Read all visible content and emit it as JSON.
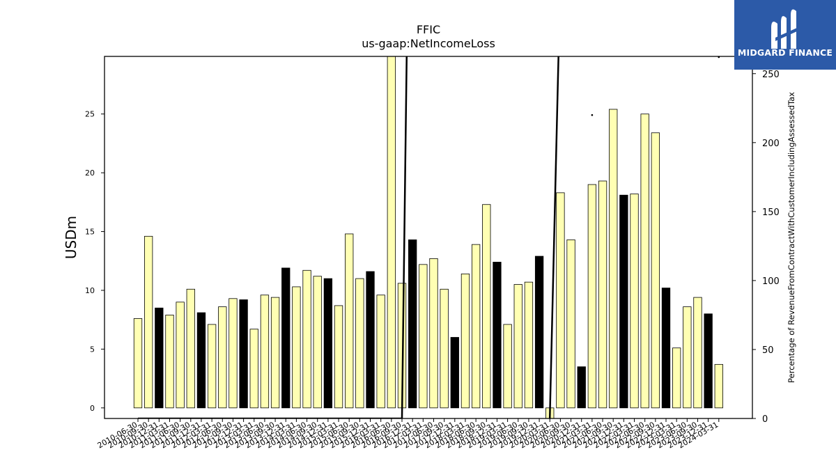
{
  "chart_data": {
    "type": "bar",
    "title": "FFIC",
    "subtitle": "us-gaap:NetIncomeLoss",
    "ylabel": "USDm",
    "y2label": "Percentage of RevenueFromContractWithCustomerIncludingAssessedTax",
    "ylim": [
      -0.9,
      29.9
    ],
    "y2lim": [
      0,
      262.5
    ],
    "yticks": [
      0,
      5,
      10,
      15,
      20,
      25
    ],
    "y2ticks": [
      0,
      50,
      100,
      150,
      200,
      250
    ],
    "grid": false,
    "legend": "none",
    "colors": {
      "bar_default": "#ffffb3",
      "bar_highlight": "#000000",
      "line": "#000000"
    },
    "categories": [
      "2010-06-30",
      "2010-09-30",
      "2010-12-31",
      "2011-03-31",
      "2011-06-30",
      "2011-09-30",
      "2011-12-31",
      "2012-03-31",
      "2012-06-30",
      "2012-09-30",
      "2012-12-31",
      "2013-03-31",
      "2013-06-30",
      "2013-09-30",
      "2013-12-31",
      "2014-03-31",
      "2014-06-30",
      "2014-09-30",
      "2014-12-31",
      "2015-03-31",
      "2015-06-30",
      "2015-09-30",
      "2015-12-31",
      "2016-03-31",
      "2016-06-30",
      "2016-09-30",
      "2016-12-31",
      "2017-03-31",
      "2017-06-30",
      "2017-09-30",
      "2017-12-31",
      "2018-03-31",
      "2018-06-30",
      "2018-09-30",
      "2018-12-31",
      "2019-03-31",
      "2019-06-30",
      "2019-09-30",
      "2019-12-31",
      "2020-03-31",
      "2020-06-30",
      "2020-09-30",
      "2020-12-31",
      "2021-03-31",
      "2021-06-30",
      "2021-09-30",
      "2021-12-31",
      "2022-03-31",
      "2022-06-30",
      "2022-09-30",
      "2022-12-31",
      "2023-03-31",
      "2023-06-30",
      "2023-09-30",
      "2023-12-31",
      "2024-03-31"
    ],
    "values": [
      7.6,
      14.6,
      8.5,
      7.9,
      9.0,
      10.1,
      8.1,
      7.1,
      8.6,
      9.3,
      9.2,
      6.7,
      9.6,
      9.4,
      11.9,
      10.3,
      11.7,
      11.2,
      11.0,
      8.7,
      14.8,
      11.0,
      11.6,
      9.6,
      30.0,
      10.6,
      14.3,
      12.2,
      12.7,
      10.1,
      6.0,
      11.4,
      13.9,
      17.3,
      12.4,
      7.1,
      10.5,
      10.7,
      12.9,
      -0.9,
      18.3,
      14.3,
      3.5,
      19.0,
      19.3,
      25.4,
      18.1,
      18.2,
      25.0,
      23.4,
      10.2,
      5.1,
      8.6,
      9.4,
      8.0,
      3.7
    ],
    "highlight": [
      false,
      false,
      true,
      false,
      false,
      false,
      true,
      false,
      false,
      false,
      true,
      false,
      false,
      false,
      true,
      false,
      false,
      false,
      true,
      false,
      false,
      false,
      true,
      false,
      false,
      false,
      true,
      false,
      false,
      false,
      true,
      false,
      false,
      false,
      true,
      false,
      false,
      false,
      true,
      false,
      false,
      false,
      true,
      false,
      false,
      false,
      true,
      false,
      false,
      false,
      true,
      false,
      false,
      false,
      true,
      false
    ],
    "line_series": {
      "axis": "right",
      "values": [
        0,
        0,
        0,
        0,
        0,
        0,
        0,
        0,
        0,
        0,
        0,
        0,
        0,
        0,
        0,
        0,
        0,
        0,
        0,
        0,
        0,
        0,
        0,
        0,
        0,
        0,
        590,
        null,
        null,
        null,
        null,
        null,
        null,
        null,
        null,
        null,
        null,
        null,
        null,
        0,
        320,
        null,
        null,
        220,
        null,
        null,
        null,
        null,
        null,
        null,
        null,
        null,
        null,
        null,
        null,
        262
      ]
    }
  },
  "logo": {
    "brand": "MIDGARD FINANCE"
  }
}
